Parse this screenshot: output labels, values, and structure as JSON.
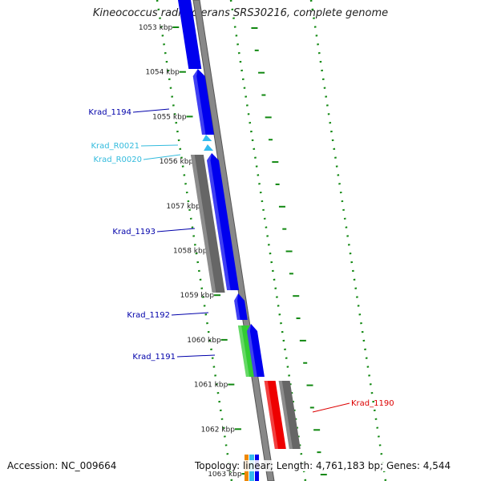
{
  "title": "Kineococcus radiotolerans SRS30216, complete genome",
  "footer": {
    "accession": "Accession: NC_009664",
    "topology": "Topology: linear; Length: 4,761,183 bp; Genes: 4,544"
  },
  "colors": {
    "cds_blue": "#0000ee",
    "rna_cyan": "#33bbee",
    "gray_feature": "#666666",
    "green_feature": "#33cc33",
    "red_feature": "#ee0000",
    "tick_green": "#118811",
    "label_blue": "#0000aa",
    "label_cyan": "#33bbdd",
    "label_red": "#dd0000"
  },
  "axis": {
    "tick_labels": [
      "1053 kbp",
      "1054 kbp",
      "1055 kbp",
      "1056 kbp",
      "1057 kbp",
      "1058 kbp",
      "1059 kbp",
      "1060 kbp",
      "1061 kbp",
      "1062 kbp",
      "1063 kbp"
    ]
  },
  "genes": [
    {
      "name": "Krad_1194",
      "color": "label_blue"
    },
    {
      "name": "Krad_R0021",
      "color": "label_cyan"
    },
    {
      "name": "Krad_R0020",
      "color": "label_cyan"
    },
    {
      "name": "Krad_1193",
      "color": "label_blue"
    },
    {
      "name": "Krad_1192",
      "color": "label_blue"
    },
    {
      "name": "Krad_1191",
      "color": "label_blue"
    },
    {
      "name": "Krad_1190",
      "color": "label_red"
    }
  ]
}
